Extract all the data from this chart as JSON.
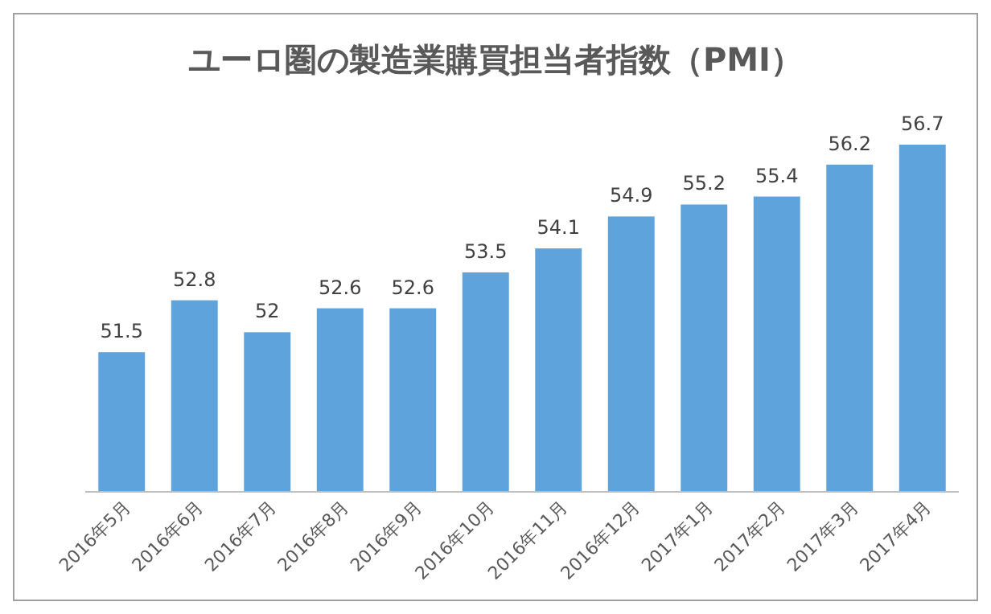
{
  "chart_data": {
    "type": "bar",
    "title": "ユーロ圏の製造業購買担当者指数（PMI）",
    "categories": [
      "2016年5月",
      "2016年6月",
      "2016年7月",
      "2016年8月",
      "2016年9月",
      "2016年10月",
      "2016年11月",
      "2016年12月",
      "2017年1月",
      "2017年2月",
      "2017年3月",
      "2017年4月"
    ],
    "values": [
      51.5,
      52.8,
      52,
      52.6,
      52.6,
      53.5,
      54.1,
      54.9,
      55.2,
      55.4,
      56.2,
      56.7
    ],
    "color": "#5ea3dc",
    "ylim": [
      48,
      56.7
    ],
    "data_labels": true
  }
}
